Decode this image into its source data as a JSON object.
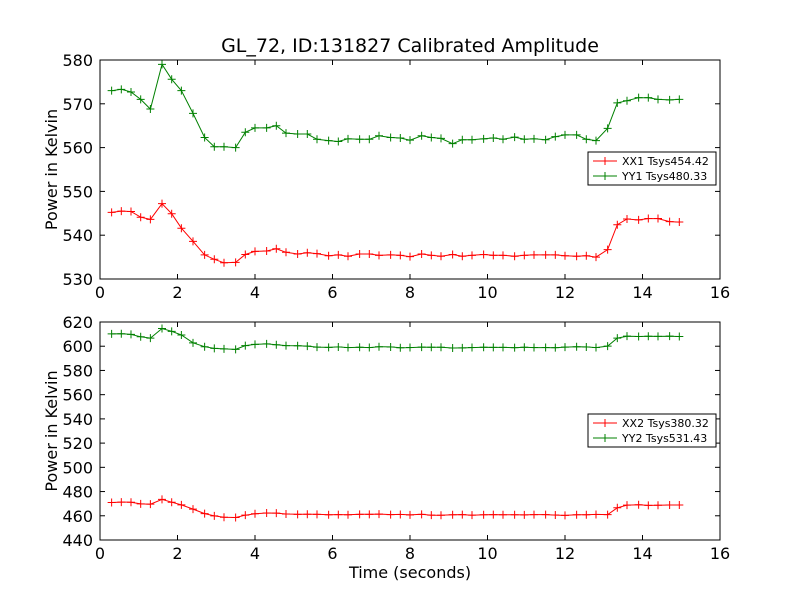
{
  "chart_data": [
    {
      "type": "line",
      "title": "GL_72, ID:131827 Calibrated Amplitude",
      "xlabel": "",
      "ylabel": "Power in Kelvin",
      "xlim": [
        0,
        16
      ],
      "ylim": [
        530,
        580
      ],
      "xticks": [
        0,
        2,
        4,
        6,
        8,
        10,
        12,
        14,
        16
      ],
      "yticks": [
        530,
        540,
        550,
        560,
        570,
        580
      ],
      "grid": false,
      "legend_position": "center-right",
      "x": [
        0.3,
        0.55,
        0.8,
        1.05,
        1.3,
        1.6,
        1.85,
        2.1,
        2.4,
        2.7,
        2.95,
        3.2,
        3.5,
        3.75,
        4.0,
        4.3,
        4.55,
        4.8,
        5.1,
        5.35,
        5.6,
        5.9,
        6.15,
        6.4,
        6.7,
        6.95,
        7.2,
        7.5,
        7.75,
        8.0,
        8.3,
        8.55,
        8.8,
        9.1,
        9.35,
        9.6,
        9.9,
        10.15,
        10.4,
        10.7,
        10.95,
        11.2,
        11.5,
        11.75,
        12.0,
        12.3,
        12.55,
        12.8,
        13.1,
        13.35,
        13.6,
        13.9,
        14.15,
        14.4,
        14.7,
        14.95
      ],
      "series": [
        {
          "name": "XX1 Tsys454.42",
          "color": "#ff0000",
          "values": [
            545.2,
            545.5,
            545.4,
            544.1,
            543.6,
            547.2,
            544.9,
            541.6,
            538.6,
            535.5,
            534.5,
            533.7,
            533.8,
            535.6,
            536.3,
            536.4,
            536.9,
            536.1,
            535.7,
            536.0,
            535.8,
            535.3,
            535.5,
            535.2,
            535.7,
            535.7,
            535.4,
            535.5,
            535.4,
            535.1,
            535.7,
            535.4,
            535.2,
            535.6,
            535.2,
            535.4,
            535.6,
            535.4,
            535.4,
            535.2,
            535.4,
            535.5,
            535.5,
            535.5,
            535.3,
            535.2,
            535.3,
            535.0,
            536.7,
            542.4,
            543.7,
            543.5,
            543.8,
            543.8,
            543.1,
            543.0
          ]
        },
        {
          "name": "YY1 Tsys480.33",
          "color": "#008000",
          "values": [
            573.0,
            573.3,
            572.7,
            571.0,
            568.8,
            579.0,
            575.6,
            573.0,
            567.8,
            562.3,
            560.2,
            560.2,
            560.0,
            563.5,
            564.5,
            564.5,
            565.0,
            563.3,
            563.1,
            563.1,
            561.9,
            561.6,
            561.4,
            562.0,
            561.9,
            561.9,
            562.7,
            562.3,
            562.2,
            561.7,
            562.7,
            562.3,
            562.1,
            560.9,
            561.8,
            561.8,
            562.0,
            562.2,
            561.9,
            562.4,
            561.9,
            562.0,
            561.8,
            562.5,
            562.9,
            562.9,
            561.9,
            561.6,
            564.4,
            570.2,
            570.7,
            571.4,
            571.4,
            571.0,
            570.9,
            571.0
          ]
        }
      ]
    },
    {
      "type": "line",
      "title": "",
      "xlabel": "Time (seconds)",
      "ylabel": "Power in Kelvin",
      "xlim": [
        0,
        16
      ],
      "ylim": [
        440,
        620
      ],
      "xticks": [
        0,
        2,
        4,
        6,
        8,
        10,
        12,
        14,
        16
      ],
      "yticks": [
        440,
        460,
        480,
        500,
        520,
        540,
        560,
        580,
        600,
        620
      ],
      "grid": false,
      "legend_position": "center-right",
      "x": [
        0.3,
        0.55,
        0.8,
        1.05,
        1.3,
        1.6,
        1.85,
        2.1,
        2.4,
        2.7,
        2.95,
        3.2,
        3.5,
        3.75,
        4.0,
        4.3,
        4.55,
        4.8,
        5.1,
        5.35,
        5.6,
        5.9,
        6.15,
        6.4,
        6.7,
        6.95,
        7.2,
        7.5,
        7.75,
        8.0,
        8.3,
        8.55,
        8.8,
        9.1,
        9.35,
        9.6,
        9.9,
        10.15,
        10.4,
        10.7,
        10.95,
        11.2,
        11.5,
        11.75,
        12.0,
        12.3,
        12.55,
        12.8,
        13.1,
        13.35,
        13.6,
        13.9,
        14.15,
        14.4,
        14.7,
        14.95
      ],
      "series": [
        {
          "name": "XX2 Tsys380.32",
          "color": "#ff0000",
          "values": [
            471.0,
            471.3,
            471.2,
            469.8,
            469.6,
            473.5,
            471.2,
            469.0,
            465.5,
            461.8,
            459.9,
            458.8,
            458.6,
            460.5,
            461.7,
            462.3,
            462.2,
            461.5,
            461.2,
            461.3,
            461.2,
            460.9,
            461.0,
            460.9,
            461.2,
            461.2,
            461.4,
            461.0,
            461.1,
            460.7,
            461.2,
            460.5,
            460.4,
            460.9,
            461.0,
            460.5,
            460.9,
            461.0,
            460.8,
            460.9,
            460.7,
            461.0,
            461.0,
            460.6,
            460.3,
            460.8,
            460.8,
            461.1,
            461.0,
            466.6,
            468.8,
            469.1,
            468.6,
            468.7,
            468.9,
            468.9
          ]
        },
        {
          "name": "YY2 Tsys531.43",
          "color": "#008000",
          "values": [
            610.2,
            610.3,
            609.8,
            607.8,
            606.7,
            614.6,
            612.3,
            609.3,
            602.8,
            599.6,
            598.2,
            597.8,
            597.4,
            600.5,
            601.5,
            601.9,
            601.2,
            600.5,
            600.4,
            600.1,
            599.3,
            599.0,
            599.4,
            598.9,
            599.1,
            598.9,
            599.6,
            599.4,
            598.7,
            598.9,
            599.3,
            599.1,
            599.1,
            598.5,
            598.6,
            598.9,
            599.2,
            599.0,
            599.0,
            598.8,
            599.2,
            598.9,
            598.9,
            598.8,
            599.3,
            599.6,
            599.4,
            598.9,
            600.1,
            606.7,
            608.3,
            608.0,
            608.2,
            608.1,
            608.3,
            608.0
          ]
        }
      ]
    }
  ]
}
